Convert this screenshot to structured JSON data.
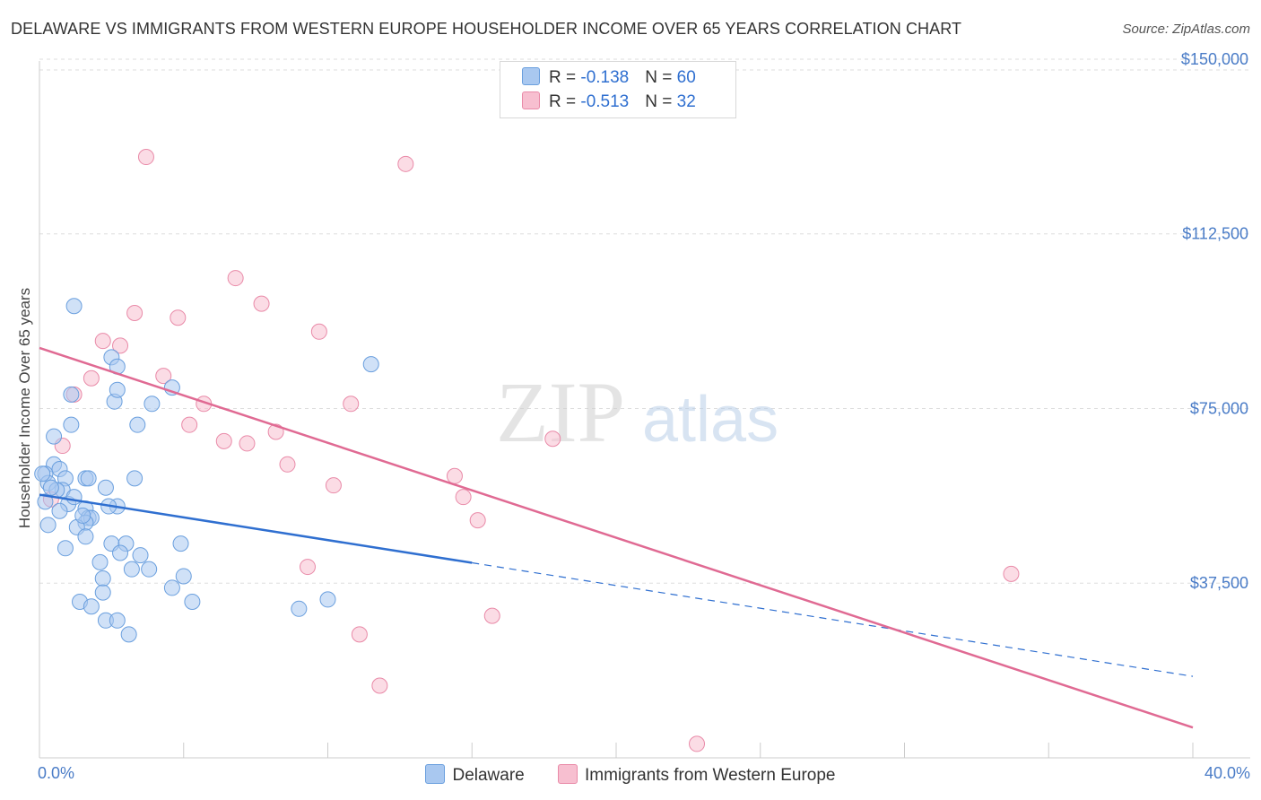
{
  "header": {
    "title": "DELAWARE VS IMMIGRANTS FROM WESTERN EUROPE HOUSEHOLDER INCOME OVER 65 YEARS CORRELATION CHART",
    "source": "Source: ZipAtlas.com"
  },
  "colors": {
    "delaware_fill": "#a9c8f0",
    "delaware_stroke": "#6a9fde",
    "delaware_line": "#2f6fd0",
    "immigrants_fill": "#f7bfd0",
    "immigrants_stroke": "#e98aa8",
    "immigrants_line": "#e06a93",
    "grid": "#dddddd",
    "tick_text": "#4a7cc7"
  },
  "watermark": {
    "part1": "ZIP",
    "part2": "atlas"
  },
  "legend": {
    "rows": [
      {
        "r_label": "R = ",
        "r_value": "-0.138",
        "n_label": "N = ",
        "n_value": "60"
      },
      {
        "r_label": "R = ",
        "r_value": "-0.513",
        "n_label": "N = ",
        "n_value": "32"
      }
    ]
  },
  "bottom_legend": {
    "series1": "Delaware",
    "series2": "Immigrants from Western Europe"
  },
  "chart_data": {
    "type": "scatter",
    "title": "DELAWARE VS IMMIGRANTS FROM WESTERN EUROPE HOUSEHOLDER INCOME OVER 65 YEARS CORRELATION CHART",
    "xlabel": "",
    "ylabel": "Householder Income Over 65 years",
    "xlim": [
      0,
      40
    ],
    "ylim": [
      0,
      155000
    ],
    "x_tick_labels": [
      "0.0%",
      "40.0%"
    ],
    "y_ticks": [
      37500,
      75000,
      112500,
      150000
    ],
    "y_tick_labels": [
      "$37,500",
      "$75,000",
      "$112,500",
      "$150,000"
    ],
    "grid": true,
    "legend_position": "top-center",
    "series": [
      {
        "name": "Delaware",
        "R": -0.138,
        "N": 60,
        "trend": {
          "solid_x": [
            0,
            15
          ],
          "x": [
            0,
            40
          ],
          "y": [
            56500,
            17500
          ]
        },
        "points": [
          [
            1.2,
            97000
          ],
          [
            2.5,
            86000
          ],
          [
            2.7,
            84000
          ],
          [
            2.6,
            76500
          ],
          [
            2.7,
            79000
          ],
          [
            4.6,
            79500
          ],
          [
            3.9,
            76000
          ],
          [
            1.1,
            78000
          ],
          [
            1.1,
            71500
          ],
          [
            0.5,
            69000
          ],
          [
            3.4,
            71500
          ],
          [
            0.5,
            63000
          ],
          [
            0.7,
            62000
          ],
          [
            0.2,
            61000
          ],
          [
            0.3,
            59000
          ],
          [
            0.9,
            60000
          ],
          [
            1.6,
            60000
          ],
          [
            1.7,
            60000
          ],
          [
            3.3,
            60000
          ],
          [
            0.8,
            57500
          ],
          [
            0.6,
            57500
          ],
          [
            2.3,
            58000
          ],
          [
            1.0,
            54500
          ],
          [
            1.6,
            53500
          ],
          [
            2.7,
            54000
          ],
          [
            2.4,
            54000
          ],
          [
            0.7,
            53000
          ],
          [
            1.7,
            51500
          ],
          [
            1.8,
            51500
          ],
          [
            1.6,
            50500
          ],
          [
            0.3,
            50000
          ],
          [
            1.3,
            49500
          ],
          [
            1.6,
            47500
          ],
          [
            0.9,
            45000
          ],
          [
            2.5,
            46000
          ],
          [
            3.0,
            46000
          ],
          [
            4.9,
            46000
          ],
          [
            2.8,
            44000
          ],
          [
            3.5,
            43500
          ],
          [
            2.1,
            42000
          ],
          [
            3.2,
            40500
          ],
          [
            3.8,
            40500
          ],
          [
            5.0,
            39000
          ],
          [
            2.2,
            38500
          ],
          [
            4.6,
            36500
          ],
          [
            2.2,
            35500
          ],
          [
            1.4,
            33500
          ],
          [
            1.8,
            32500
          ],
          [
            5.3,
            33500
          ],
          [
            9.0,
            32000
          ],
          [
            10.0,
            34000
          ],
          [
            11.5,
            84500
          ],
          [
            2.3,
            29500
          ],
          [
            2.7,
            29500
          ],
          [
            3.1,
            26500
          ],
          [
            0.2,
            55000
          ],
          [
            0.4,
            58000
          ],
          [
            0.1,
            61000
          ],
          [
            1.2,
            56000
          ],
          [
            1.5,
            52000
          ]
        ]
      },
      {
        "name": "Immigrants from Western Europe",
        "R": -0.513,
        "N": 32,
        "trend": {
          "x": [
            0,
            40
          ],
          "y": [
            88000,
            6500
          ]
        },
        "points": [
          [
            3.7,
            129000
          ],
          [
            12.7,
            127500
          ],
          [
            6.8,
            103000
          ],
          [
            7.7,
            97500
          ],
          [
            3.3,
            95500
          ],
          [
            4.8,
            94500
          ],
          [
            9.7,
            91500
          ],
          [
            2.2,
            89500
          ],
          [
            2.8,
            88500
          ],
          [
            1.8,
            81500
          ],
          [
            4.3,
            82000
          ],
          [
            1.2,
            78000
          ],
          [
            5.7,
            76000
          ],
          [
            10.8,
            76000
          ],
          [
            5.2,
            71500
          ],
          [
            8.2,
            70000
          ],
          [
            6.4,
            68000
          ],
          [
            7.2,
            67500
          ],
          [
            17.8,
            68500
          ],
          [
            0.8,
            67000
          ],
          [
            8.6,
            63000
          ],
          [
            10.2,
            58500
          ],
          [
            14.4,
            60500
          ],
          [
            14.7,
            56000
          ],
          [
            15.2,
            51000
          ],
          [
            0.4,
            55500
          ],
          [
            9.3,
            41000
          ],
          [
            33.7,
            39500
          ],
          [
            15.7,
            30500
          ],
          [
            11.1,
            26500
          ],
          [
            11.8,
            15500
          ],
          [
            22.8,
            3000
          ]
        ]
      }
    ]
  }
}
